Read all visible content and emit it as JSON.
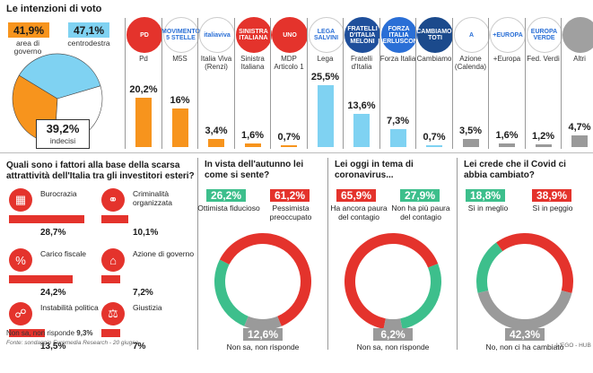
{
  "chart_data": [
    {
      "type": "bar",
      "title": "Le intenzioni di voto",
      "summary": {
        "area_governo": {
          "value": "41,9%",
          "label": "area di governo",
          "color": "#f7941d"
        },
        "centrodestra": {
          "value": "47,1%",
          "label": "centrodestra",
          "color": "#7fd2f2"
        },
        "indecisi": {
          "value": "39,2%",
          "label": "indecisi"
        }
      },
      "pie_values": [
        41.9,
        47.1,
        39.2
      ],
      "categories": [
        "Pd",
        "M5S",
        "Italia Viva (Renzi)",
        "Sinistra Italiana",
        "MDP Articolo 1",
        "Lega",
        "Fratelli d'Italia",
        "Forza Italia",
        "Cambiamo",
        "Azione (Calenda)",
        "+Europa",
        "Fed. Verdi",
        "Altri"
      ],
      "values": [
        20.2,
        16,
        3.4,
        1.6,
        0.7,
        25.5,
        13.6,
        7.3,
        0.7,
        3.5,
        1.6,
        1.2,
        4.7
      ],
      "value_labels": [
        "20,2%",
        "16%",
        "3,4%",
        "1,6%",
        "0,7%",
        "25,5%",
        "13,6%",
        "7,3%",
        "0,7%",
        "3,5%",
        "1,6%",
        "1,2%",
        "4,7%"
      ],
      "group": [
        "gov",
        "gov",
        "gov",
        "gov",
        "gov",
        "cd",
        "cd",
        "cd",
        "cd",
        "oth",
        "oth",
        "oth",
        "oth"
      ],
      "logo_text": [
        "PD",
        "MOVIMENTO\n5 STELLE",
        "italiaviva",
        "SINISTRA\nITALIANA",
        "UNO",
        "LEGA\nSALVINI",
        "FRATELLI\nD'ITALIA\nMELONI",
        "FORZA\nITALIA\nBERLUSCONI",
        "CAMBIAMO!\nTOTI",
        "A",
        "+EUROPA",
        "EUROPA\nVERDE",
        " "
      ],
      "logo_color": [
        "#e4332c",
        "#ffffff",
        "#ffffff",
        "#e4332c",
        "#e4332c",
        "#ffffff",
        "#1f4f9b",
        "#2a6fd6",
        "#1b4a8c",
        "#ffffff",
        "#ffffff",
        "#ffffff",
        "#a0a0a0"
      ],
      "ylim": [
        0,
        27
      ]
    },
    {
      "type": "bar",
      "orientation": "horizontal",
      "title": "Quali sono i fattori alla base della scarsa attrattività dell'Italia tra gli investitori esteri?",
      "categories": [
        "Burocrazia",
        "Criminalità organizzata",
        "Carico fiscale",
        "Azione di governo",
        "Instabilità politica",
        "Giustizia"
      ],
      "values": [
        28.7,
        10.1,
        24.2,
        7.2,
        13.5,
        7
      ],
      "value_labels": [
        "28,7%",
        "10,1%",
        "24,2%",
        "7,2%",
        "13,5%",
        "7%"
      ],
      "icons": [
        "office-building",
        "handcuffs",
        "tax",
        "government",
        "politics",
        "justice"
      ],
      "icon_glyphs": [
        "▦",
        "⚭",
        "%",
        "⌂",
        "☍",
        "⚖"
      ],
      "non_sa": {
        "label": "Non sa, non risponde",
        "value": "9,3%"
      },
      "xlim": [
        0,
        30
      ]
    },
    {
      "type": "pie",
      "title": "In vista dell'autunno lei come si sente?",
      "labels": [
        "Ottimista fiducioso",
        "Pessimista preoccupato",
        "Non sa, non risponde"
      ],
      "values": [
        26.2,
        61.2,
        12.6
      ],
      "value_labels": [
        "26,2%",
        "61,2%",
        "12,6%"
      ],
      "colors": [
        "#3dbf8c",
        "#e4332c",
        "#9a9a9a"
      ]
    },
    {
      "type": "pie",
      "title": "Lei oggi in tema di coronavirus...",
      "labels": [
        "Ha ancora paura del contagio",
        "Non ha più paura del contagio",
        "Non sa, non risponde"
      ],
      "values": [
        65.9,
        27.9,
        6.2
      ],
      "value_labels": [
        "65,9%",
        "27,9%",
        "6,2%"
      ],
      "colors": [
        "#e4332c",
        "#3dbf8c",
        "#9a9a9a"
      ]
    },
    {
      "type": "pie",
      "title": "Lei crede che il Covid ci abbia cambiato?",
      "labels": [
        "Sì in meglio",
        "Sì in peggio",
        "No, non ci ha cambiato"
      ],
      "values": [
        18.8,
        38.9,
        42.3
      ],
      "value_labels": [
        "18,8%",
        "38,9%",
        "42,3%"
      ],
      "colors": [
        "#3dbf8c",
        "#e4332c",
        "#9a9a9a"
      ]
    }
  ],
  "footer": {
    "source": "Fonte: sondaggio Euromedia Research - 20 giugno",
    "credit": "L'EGO - HUB"
  }
}
